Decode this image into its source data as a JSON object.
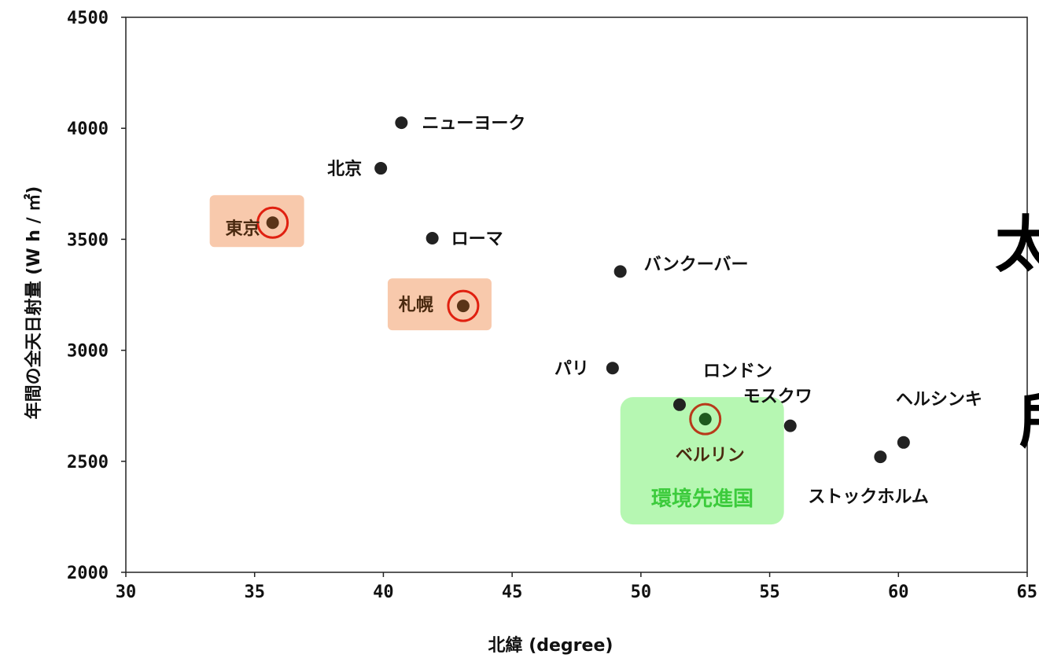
{
  "chart_data": {
    "type": "scatter",
    "xlabel": "北緯 (degree)",
    "ylabel": "年間の全天日射量 (W h / ㎡)",
    "xlim": [
      30,
      65
    ],
    "ylim": [
      2000,
      4500
    ],
    "xticks": [
      "30",
      "35",
      "40",
      "45",
      "50",
      "55",
      "60",
      "65"
    ],
    "yticks": [
      "2000",
      "2500",
      "3000",
      "3500",
      "4000",
      "4500"
    ],
    "grid": false,
    "points": [
      {
        "label": "ニューヨーク",
        "x": 40.7,
        "y": 4025
      },
      {
        "label": "北京",
        "x": 39.9,
        "y": 3820
      },
      {
        "label": "東京",
        "x": 35.7,
        "y": 3575,
        "highlight": "japan"
      },
      {
        "label": "ローマ",
        "x": 41.9,
        "y": 3505
      },
      {
        "label": "バンクーバー",
        "x": 49.2,
        "y": 3355
      },
      {
        "label": "札幌",
        "x": 43.1,
        "y": 3200,
        "highlight": "japan"
      },
      {
        "label": "パリ",
        "x": 48.9,
        "y": 2920
      },
      {
        "label": "ロンドン",
        "x": 51.5,
        "y": 2755
      },
      {
        "label": "ベルリン",
        "x": 52.5,
        "y": 2690,
        "highlight": "eco"
      },
      {
        "label": "モスクワ",
        "x": 55.8,
        "y": 2660
      },
      {
        "label": "ヘルシンキ",
        "x": 60.2,
        "y": 2585
      },
      {
        "label": "ストックホルム",
        "x": 59.3,
        "y": 2520
      }
    ],
    "annotations": {
      "eco_banner": "環境先進国"
    },
    "colors": {
      "point": "#222222",
      "highlight_ring": "#e02010",
      "japan_box": "#f8c9ac",
      "eco_box": "#b6f7b2",
      "eco_text": "#3ccb3c",
      "berlin_point": "#1e5a1e"
    }
  },
  "overflow_text": [
    "太",
    "所"
  ]
}
